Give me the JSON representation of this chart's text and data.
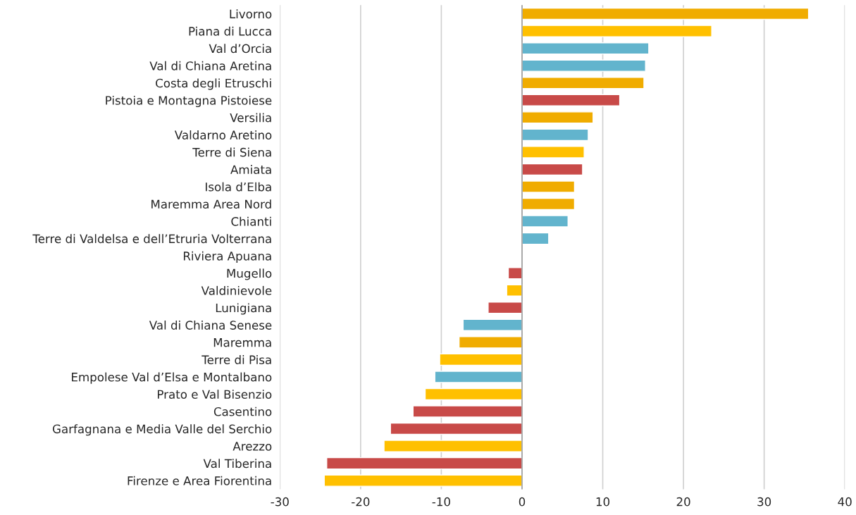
{
  "chart_data": {
    "type": "bar",
    "orientation": "horizontal",
    "categories": [
      "Livorno",
      "Piana di Lucca",
      "Val d’Orcia",
      "Val di Chiana Aretina",
      "Costa degli Etruschi",
      "Pistoia e Montagna Pistoiese",
      "Versilia",
      "Valdarno Aretino",
      "Terre di Siena",
      "Amiata",
      "Isola d’Elba",
      "Maremma Area Nord",
      "Chianti",
      "Terre di Valdelsa e dell’Etruria Volterrana",
      "Riviera Apuana",
      "Mugello",
      "Valdinievole",
      "Lunigiana",
      "Val di Chiana Senese",
      "Maremma",
      "Terre di Pisa",
      "Empolese Val d’Elsa e Montalbano",
      "Prato e Val Bisenzio",
      "Casentino",
      "Garfagnana e Media Valle del Serchio",
      "Arezzo",
      "Val Tiberina",
      "Firenze e Area Fiorentina"
    ],
    "values": [
      35.5,
      23.5,
      15.7,
      15.3,
      15.1,
      12.1,
      8.8,
      8.2,
      7.7,
      7.5,
      6.5,
      6.5,
      5.7,
      3.3,
      null,
      -1.7,
      -1.9,
      -4.2,
      -7.3,
      -7.8,
      -10.2,
      -10.8,
      -12.0,
      -13.5,
      -16.3,
      -17.1,
      -24.2,
      -24.5
    ],
    "colors": [
      "#f0ac00",
      "#ffc000",
      "#62b4cd",
      "#62b4cd",
      "#f0ac00",
      "#c84a48",
      "#f0ac00",
      "#62b4cd",
      "#ffc000",
      "#c84a48",
      "#f0ac00",
      "#f0ac00",
      "#62b4cd",
      "#62b4cd",
      null,
      "#c84a48",
      "#ffc000",
      "#c84a48",
      "#62b4cd",
      "#f0ac00",
      "#ffc000",
      "#62b4cd",
      "#ffc000",
      "#c84a48",
      "#c84a48",
      "#ffc000",
      "#c84a48",
      "#ffc000"
    ],
    "xlim": [
      -30,
      40
    ],
    "xticks": [
      -30,
      -20,
      -10,
      0,
      10,
      20,
      30,
      40
    ],
    "grid": "x"
  }
}
